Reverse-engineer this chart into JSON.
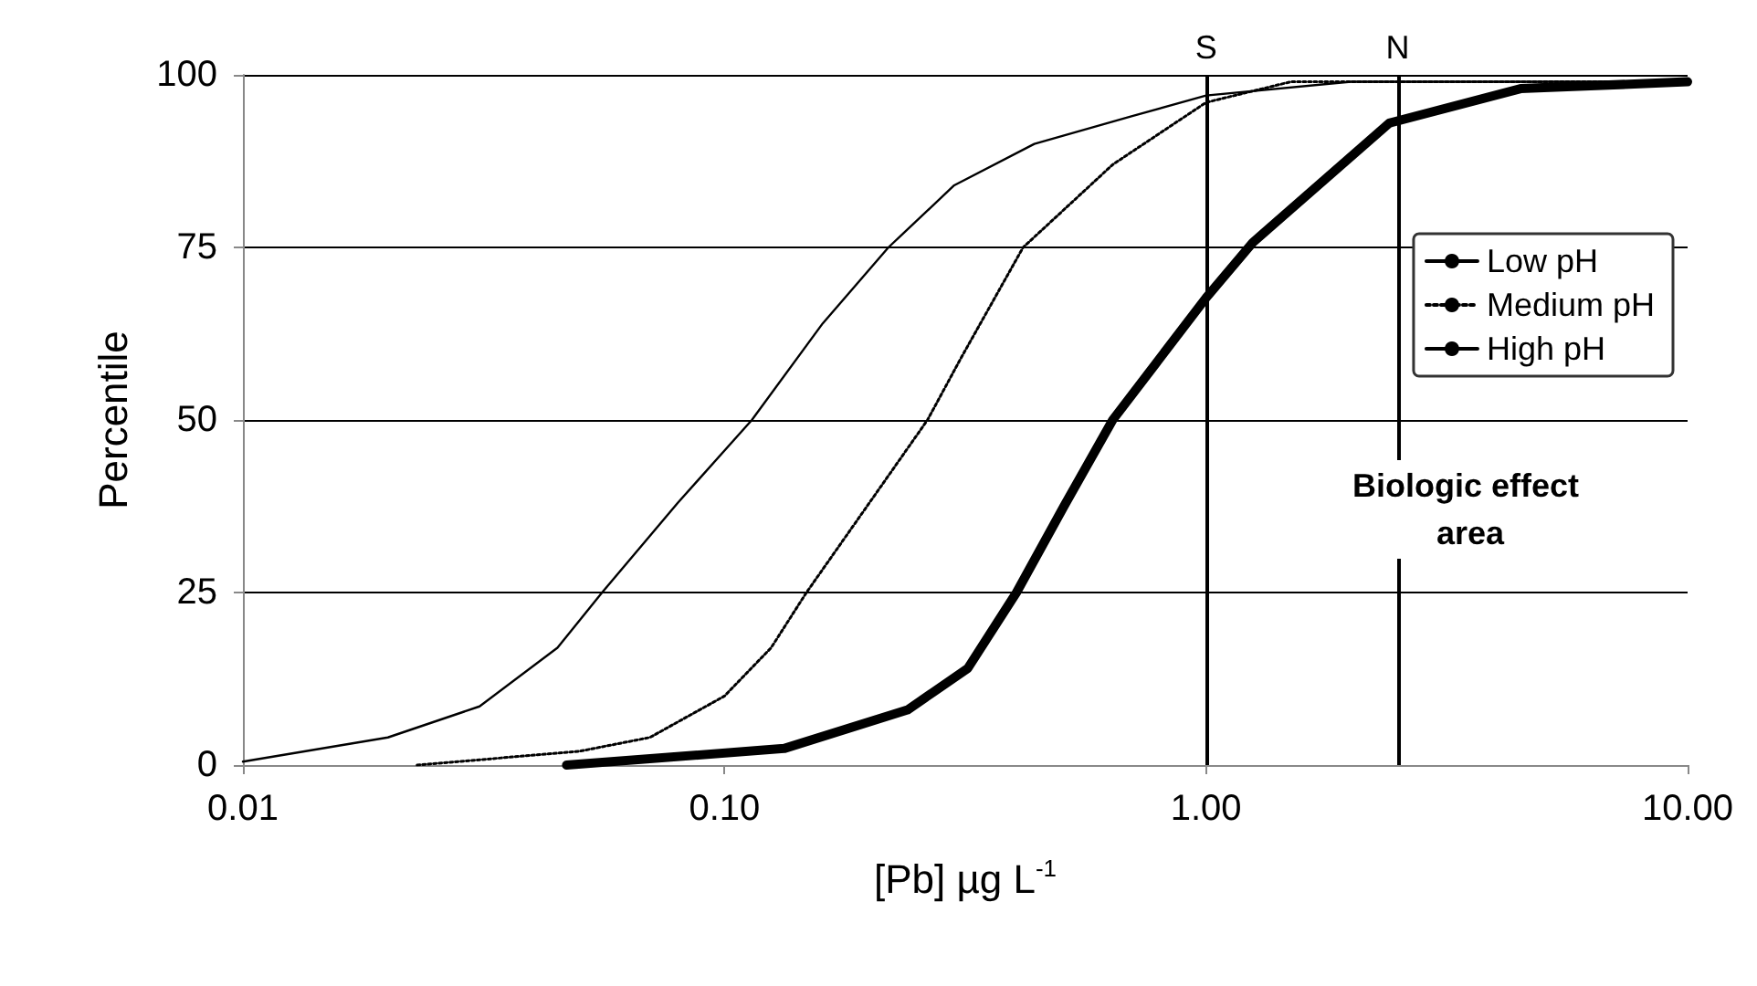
{
  "chart_data": {
    "type": "line",
    "xlabel": "[Pb] µg L$^{-1}$",
    "ylabel": "Percentile",
    "log": "x",
    "xlim": [
      0.01,
      10
    ],
    "xticks": [
      {
        "value": 0.01,
        "label": "0.01"
      },
      {
        "value": 0.1,
        "label": "0.10"
      },
      {
        "value": 1,
        "label": "1.00"
      },
      {
        "value": 10,
        "label": "10.00"
      }
    ],
    "ylim": [
      0,
      100
    ],
    "yticks": [
      0,
      25,
      50,
      75,
      100
    ],
    "grid": "y",
    "legend": "top right",
    "marker": "none",
    "series": [
      {
        "name": "Low pH",
        "color": "#000000",
        "line_style": "solid",
        "x": [
          0.01,
          0.02,
          0.031,
          0.045,
          0.0557,
          0.08,
          0.114,
          0.16,
          0.219,
          0.3,
          0.44,
          0.7,
          1.0,
          2,
          5,
          10
        ],
        "values": [
          0.5,
          4,
          8.5,
          17,
          25,
          38,
          50,
          64,
          75,
          84,
          90,
          94,
          97,
          99,
          99,
          99
        ]
      },
      {
        "name": "Medium pH",
        "color": "#000000",
        "line_style": "dotted",
        "x": [
          0.023,
          0.05,
          0.07,
          0.1,
          0.125,
          0.148,
          0.2,
          0.264,
          0.31,
          0.417,
          0.64,
          1.0,
          1.5,
          3,
          10
        ],
        "values": [
          0,
          2,
          4,
          10,
          17,
          25,
          38,
          50,
          59,
          75,
          87,
          96,
          99,
          99,
          99
        ]
      },
      {
        "name": "High pH",
        "color": "#000000",
        "line_style": "solid",
        "x": [
          0.047,
          0.133,
          0.24,
          0.32,
          0.404,
          0.507,
          0.64,
          1.0,
          1.25,
          2.4,
          4.5,
          10
        ],
        "values": [
          0,
          2.4,
          8,
          14,
          25,
          37.5,
          50,
          67.7,
          75.7,
          93,
          98,
          99
        ]
      }
    ],
    "ref_lines": [
      {
        "axis": "x",
        "value": 1,
        "label": "S"
      },
      {
        "axis": "x",
        "value": 2.5,
        "label": "N"
      }
    ],
    "annotations": [
      "Biologic effect area"
    ]
  }
}
